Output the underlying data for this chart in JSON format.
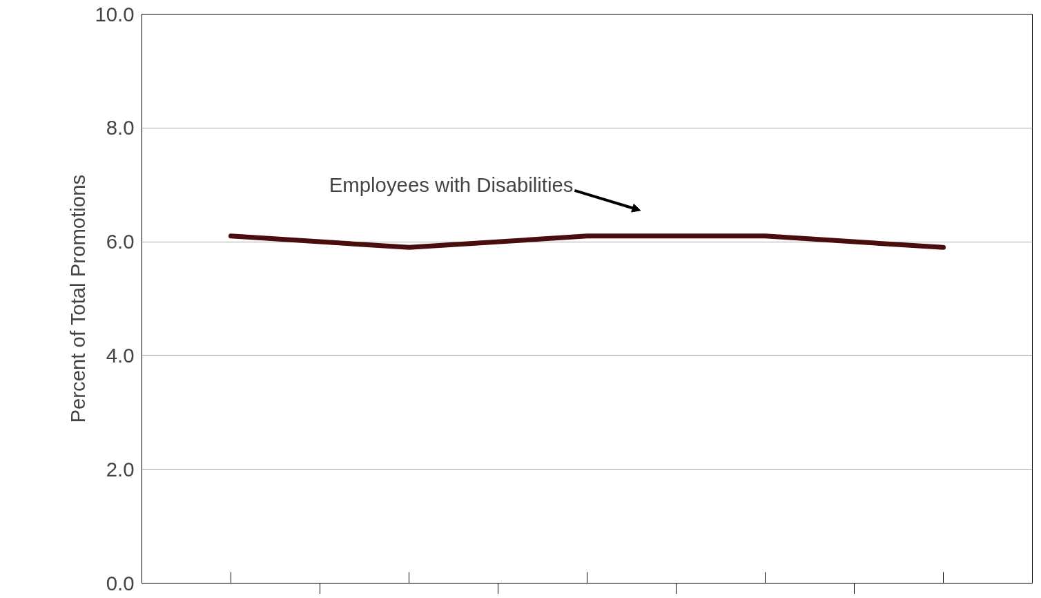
{
  "chart_data": {
    "type": "line",
    "ylabel": "Percent of Total Promotions",
    "categories": [
      null,
      null,
      null,
      null,
      null
    ],
    "series": [
      {
        "name": "Employees with Disabilities",
        "color": "#4a0d0d",
        "values": [
          6.1,
          5.9,
          6.1,
          6.1,
          5.9
        ]
      }
    ],
    "ylim": [
      0,
      10
    ],
    "yticks": [
      {
        "value": 0,
        "label": "0.0"
      },
      {
        "value": 2,
        "label": "2.0"
      },
      {
        "value": 4,
        "label": "4.0"
      },
      {
        "value": 6,
        "label": "6.0"
      },
      {
        "value": 8,
        "label": "8.0"
      },
      {
        "value": 10,
        "label": "10.0"
      }
    ],
    "grid": "y",
    "tick_labels": "y",
    "marker": "none",
    "line_style": "solid"
  }
}
